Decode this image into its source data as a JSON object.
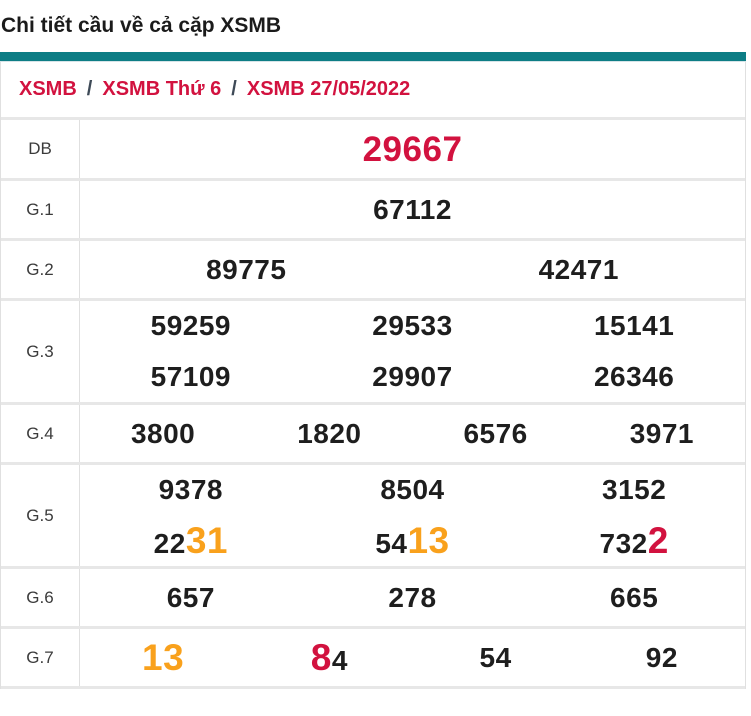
{
  "page_title": "Chi tiết cầu về cả cặp XSMB",
  "colors": {
    "teal": "#0d7d85",
    "crimson": "#d2123f",
    "orange": "#f9a11c",
    "ink": "#1e1e1e",
    "label": "#3b3b3b",
    "border_h": "#e7e7e7",
    "border_v": "#e0e0e0",
    "sep": "#3e4a57"
  },
  "breadcrumb": {
    "items": [
      "XSMB",
      "XSMB Thứ 6",
      "XSMB 27/05/2022"
    ],
    "separator": "/"
  },
  "prize_table": {
    "rows": [
      {
        "label": "DB",
        "lines": [
          [
            [
              {
                "text": "29667",
                "style": "db"
              }
            ]
          ]
        ]
      },
      {
        "label": "G.1",
        "lines": [
          [
            [
              {
                "text": "67112"
              }
            ]
          ]
        ]
      },
      {
        "label": "G.2",
        "lines": [
          [
            [
              {
                "text": "89775"
              }
            ],
            [
              {
                "text": "42471"
              }
            ]
          ]
        ]
      },
      {
        "label": "G.3",
        "lines": [
          [
            [
              {
                "text": "59259"
              }
            ],
            [
              {
                "text": "29533"
              }
            ],
            [
              {
                "text": "15141"
              }
            ]
          ],
          [
            [
              {
                "text": "57109"
              }
            ],
            [
              {
                "text": "29907"
              }
            ],
            [
              {
                "text": "26346"
              }
            ]
          ]
        ]
      },
      {
        "label": "G.4",
        "lines": [
          [
            [
              {
                "text": "3800"
              }
            ],
            [
              {
                "text": "1820"
              }
            ],
            [
              {
                "text": "6576"
              }
            ],
            [
              {
                "text": "3971"
              }
            ]
          ]
        ]
      },
      {
        "label": "G.5",
        "lines": [
          [
            [
              {
                "text": "9378"
              }
            ],
            [
              {
                "text": "8504"
              }
            ],
            [
              {
                "text": "3152"
              }
            ]
          ],
          [
            [
              {
                "text": "22"
              },
              {
                "text": "31",
                "style": "orange"
              }
            ],
            [
              {
                "text": "54"
              },
              {
                "text": "13",
                "style": "orange"
              }
            ],
            [
              {
                "text": "732"
              },
              {
                "text": "2",
                "style": "red"
              }
            ]
          ]
        ]
      },
      {
        "label": "G.6",
        "lines": [
          [
            [
              {
                "text": "657"
              }
            ],
            [
              {
                "text": "278"
              }
            ],
            [
              {
                "text": "665"
              }
            ]
          ]
        ]
      },
      {
        "label": "G.7",
        "lines": [
          [
            [
              {
                "text": "13",
                "style": "orange"
              }
            ],
            [
              {
                "text": "8",
                "style": "red"
              },
              {
                "text": "4"
              }
            ],
            [
              {
                "text": "54"
              }
            ],
            [
              {
                "text": "92"
              }
            ]
          ]
        ]
      }
    ]
  }
}
